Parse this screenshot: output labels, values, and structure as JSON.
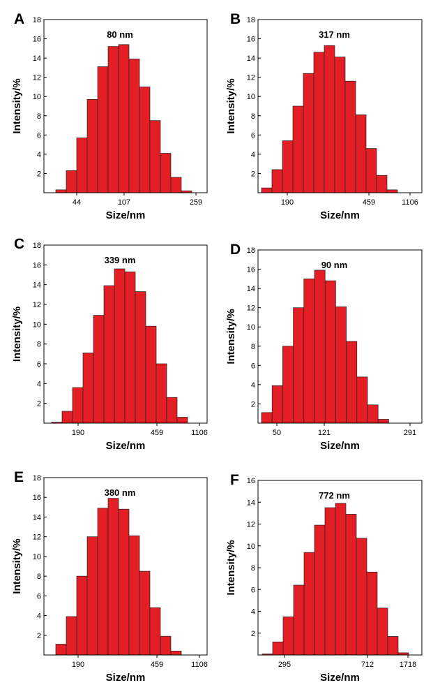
{
  "chart_data": [
    {
      "type": "bar",
      "panel": "A",
      "annotation": "80 nm",
      "xlabel": "Size/nm",
      "ylabel": "Intensity/%",
      "xticks": [
        "44",
        "107",
        "259"
      ],
      "yticks": [
        2,
        4,
        6,
        8,
        10,
        12,
        14,
        16,
        18
      ],
      "ylim": [
        0,
        18
      ],
      "color": "#e41e25",
      "values": [
        0.3,
        2.3,
        5.7,
        9.7,
        13.1,
        15.2,
        15.4,
        13.9,
        11.0,
        7.5,
        4.1,
        1.6,
        0.2
      ]
    },
    {
      "type": "bar",
      "panel": "B",
      "annotation": "317 nm",
      "xlabel": "Size/nm",
      "ylabel": "Intensity/%",
      "xticks": [
        "190",
        "459",
        "1106"
      ],
      "yticks": [
        2,
        4,
        6,
        8,
        10,
        12,
        14,
        16,
        18
      ],
      "ylim": [
        0,
        18
      ],
      "color": "#e41e25",
      "values": [
        0.5,
        2.4,
        5.4,
        9.0,
        12.4,
        14.6,
        15.3,
        14.1,
        11.6,
        8.1,
        4.6,
        1.8,
        0.3
      ]
    },
    {
      "type": "bar",
      "panel": "C",
      "annotation": "339 nm",
      "xlabel": "Size/nm",
      "ylabel": "Intensity/%",
      "xticks": [
        "190",
        "459",
        "1106"
      ],
      "yticks": [
        2,
        4,
        6,
        8,
        10,
        12,
        14,
        16,
        18
      ],
      "ylim": [
        0,
        18
      ],
      "color": "#e41e25",
      "values": [
        0.1,
        1.2,
        3.6,
        7.1,
        10.9,
        13.9,
        15.6,
        15.3,
        13.3,
        9.8,
        6.0,
        2.6,
        0.6
      ]
    },
    {
      "type": "bar",
      "panel": "D",
      "annotation": "90 nm",
      "xlabel": "Size/nm",
      "ylabel": "Intensity/%",
      "xticks": [
        "50",
        "121",
        "291"
      ],
      "yticks": [
        2,
        4,
        6,
        8,
        10,
        12,
        14,
        16,
        18
      ],
      "ylim": [
        0,
        18
      ],
      "color": "#e41e25",
      "values": [
        1.1,
        3.9,
        8.0,
        12.0,
        15.0,
        15.9,
        14.8,
        12.1,
        8.5,
        4.8,
        1.9,
        0.4
      ]
    },
    {
      "type": "bar",
      "panel": "E",
      "annotation": "380 nm",
      "xlabel": "Size/nm",
      "ylabel": "Intensity/%",
      "xticks": [
        "190",
        "459",
        "1106"
      ],
      "yticks": [
        2,
        4,
        6,
        8,
        10,
        12,
        14,
        16,
        18
      ],
      "ylim": [
        0,
        18
      ],
      "color": "#e41e25",
      "values": [
        1.1,
        3.9,
        8.0,
        12.0,
        14.9,
        15.9,
        14.8,
        12.1,
        8.5,
        4.8,
        1.9,
        0.4
      ]
    },
    {
      "type": "bar",
      "panel": "F",
      "annotation": "772 nm",
      "xlabel": "Size/nm",
      "ylabel": "Intensity/%",
      "xticks": [
        "295",
        "712",
        "1718"
      ],
      "yticks": [
        2,
        4,
        6,
        8,
        10,
        12,
        14,
        16
      ],
      "ylim": [
        0,
        16
      ],
      "color": "#e41e25",
      "values": [
        0.1,
        1.2,
        3.5,
        6.4,
        9.4,
        11.9,
        13.5,
        13.9,
        12.9,
        10.7,
        7.6,
        4.3,
        1.7,
        0.2
      ]
    }
  ]
}
